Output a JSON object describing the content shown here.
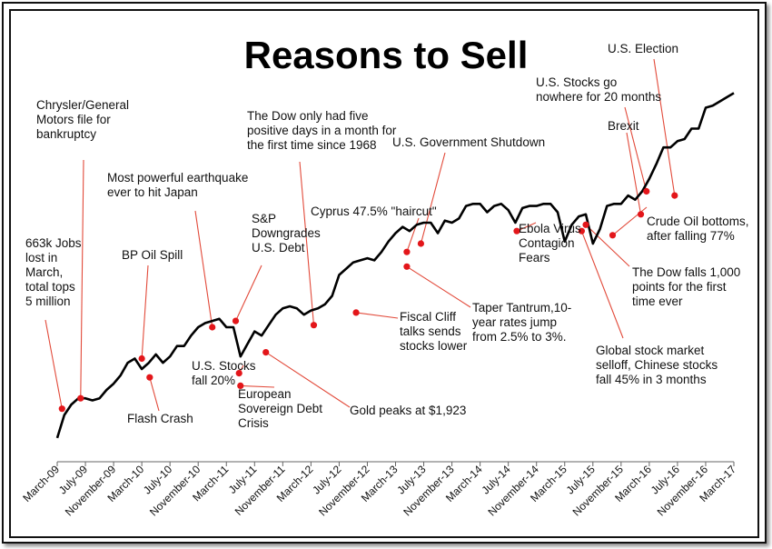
{
  "chart_data": {
    "type": "line",
    "title": "Reasons to Sell",
    "x_tick_labels": [
      "March-09",
      "July-09",
      "November-09",
      "March-10",
      "July-10",
      "November-10",
      "March-11",
      "July-11",
      "November-11",
      "March-12",
      "July-12",
      "November-12",
      "March-13",
      "July-13",
      "November-13",
      "March-14",
      "July-14",
      "November-14",
      "March-15",
      "July-15",
      "November-15",
      "March-16",
      "July-16",
      "November-16",
      "March-17"
    ],
    "series": [
      {
        "x": [
          0,
          0.25,
          0.5,
          0.75,
          1,
          1.25,
          1.5,
          1.75,
          2,
          2.25,
          2.5,
          2.75,
          3,
          3.25,
          3.5,
          3.75,
          4,
          4.25,
          4.5,
          4.75,
          5,
          5.25,
          5.5,
          5.75,
          6,
          6.25,
          6.5,
          6.75,
          7,
          7.25,
          7.5,
          7.75,
          8,
          8.25,
          8.5,
          8.75,
          9,
          9.25,
          9.5,
          9.75,
          10,
          10.25,
          10.5,
          10.75,
          11,
          11.25,
          11.5,
          11.75,
          12,
          12.25,
          12.5,
          12.75,
          13,
          13.25,
          13.5,
          13.75,
          14,
          14.25,
          14.5,
          14.75,
          15,
          15.25,
          15.5,
          15.75,
          16,
          16.25,
          16.5,
          16.75,
          17,
          17.25,
          17.5,
          17.75,
          18,
          18.25,
          18.5,
          18.75,
          19,
          19.25,
          19.5,
          19.75,
          20,
          20.25,
          20.5,
          20.75,
          21,
          21.25,
          21.5,
          21.75,
          22,
          22.25,
          22.5,
          22.75,
          23,
          23.25,
          23.5,
          23.75,
          24
        ],
        "y": [
          6.7,
          7.8,
          8.3,
          8.6,
          8.6,
          8.5,
          8.6,
          9.0,
          9.3,
          9.7,
          10.3,
          10.5,
          10.0,
          10.3,
          10.7,
          10.3,
          10.6,
          11.1,
          11.1,
          11.6,
          12.0,
          12.2,
          12.3,
          12.4,
          12.0,
          12.0,
          10.6,
          11.2,
          11.8,
          11.6,
          12.1,
          12.6,
          12.9,
          13.0,
          12.9,
          12.6,
          12.8,
          12.9,
          13.1,
          13.5,
          14.5,
          14.8,
          15.1,
          15.2,
          15.3,
          15.2,
          15.6,
          16.1,
          16.5,
          16.8,
          16.6,
          16.9,
          17.0,
          17.0,
          16.5,
          17.1,
          17.0,
          17.2,
          17.8,
          17.9,
          17.9,
          17.5,
          17.8,
          17.9,
          17.6,
          17.0,
          17.7,
          17.8,
          17.8,
          17.9,
          17.9,
          17.5,
          16.1,
          16.9,
          17.3,
          17.4,
          16.0,
          16.7,
          17.8,
          17.9,
          17.9,
          18.3,
          18.1,
          18.5,
          19.1,
          19.8,
          20.6,
          20.6,
          20.9,
          21.0,
          21.5,
          21.5,
          22.5,
          22.6,
          22.8,
          23.0,
          23.2
        ]
      }
    ],
    "xlim": [
      0,
      24
    ],
    "ylim": [
      6,
      24
    ],
    "grid": false,
    "annotations": [
      {
        "x": 0.17,
        "y": 8.1,
        "lines": [
          "663k Jobs",
          "lost in",
          "March,",
          "total tops",
          "5 million"
        ]
      },
      {
        "x": 0.83,
        "y": 8.6,
        "lines": [
          "Chrysler/General",
          "Motors file for",
          "bankruptcy"
        ]
      },
      {
        "x": 3.0,
        "y": 10.5,
        "lines": [
          "BP Oil Spill"
        ]
      },
      {
        "x": 3.28,
        "y": 9.6,
        "lines": [
          "Flash Crash"
        ]
      },
      {
        "x": 5.5,
        "y": 12.0,
        "lines": [
          "Most powerful earthquake",
          "ever to hit Japan"
        ]
      },
      {
        "x": 6.33,
        "y": 12.3,
        "lines": [
          "S&P",
          "Downgrades",
          "U.S. Debt"
        ]
      },
      {
        "x": 6.45,
        "y": 9.8,
        "lines": [
          "U.S. Stocks",
          "fall 20%"
        ]
      },
      {
        "x": 6.5,
        "y": 9.2,
        "lines": [
          "European",
          "Sovereign Debt",
          "Crisis"
        ]
      },
      {
        "x": 7.4,
        "y": 10.8,
        "lines": [
          "Gold peaks at $1,923"
        ]
      },
      {
        "x": 9.1,
        "y": 12.1,
        "lines": [
          "The Dow only had five",
          "positive days in a month for",
          "the first time since 1968"
        ]
      },
      {
        "x": 10.6,
        "y": 12.7,
        "lines": [
          "Fiscal Cliff",
          "talks sends",
          "stocks lower"
        ]
      },
      {
        "x": 12.4,
        "y": 15.6,
        "lines": [
          "Cyprus 47.5% \"haircut\""
        ]
      },
      {
        "x": 12.9,
        "y": 16.0,
        "lines": [
          "U.S. Government  Shutdown"
        ]
      },
      {
        "x": 12.4,
        "y": 14.9,
        "lines": [
          "Taper Tantrum,10-",
          "year rates jump",
          "from 2.5% to 3%."
        ]
      },
      {
        "x": 16.3,
        "y": 16.6,
        "lines": [
          "Ebola Virus",
          "Contagion",
          "Fears"
        ]
      },
      {
        "x": 18.6,
        "y": 16.6,
        "lines": [
          "Global stock market",
          "selloff, Chinese stocks",
          "fall 45% in 3 months"
        ]
      },
      {
        "x": 18.75,
        "y": 16.9,
        "lines": [
          "The Dow falls 1,000",
          "points for the first",
          "time ever"
        ]
      },
      {
        "x": 19.7,
        "y": 16.4,
        "lines": [
          "Crude Oil bottoms,",
          "after falling 77%"
        ]
      },
      {
        "x": 20.7,
        "y": 17.4,
        "lines": [
          "Brexit"
        ]
      },
      {
        "x": 20.9,
        "y": 18.5,
        "lines": [
          "U.S. Stocks go",
          "nowhere for 20 months"
        ]
      },
      {
        "x": 21.9,
        "y": 18.3,
        "lines": [
          "U.S. Election"
        ]
      }
    ]
  }
}
